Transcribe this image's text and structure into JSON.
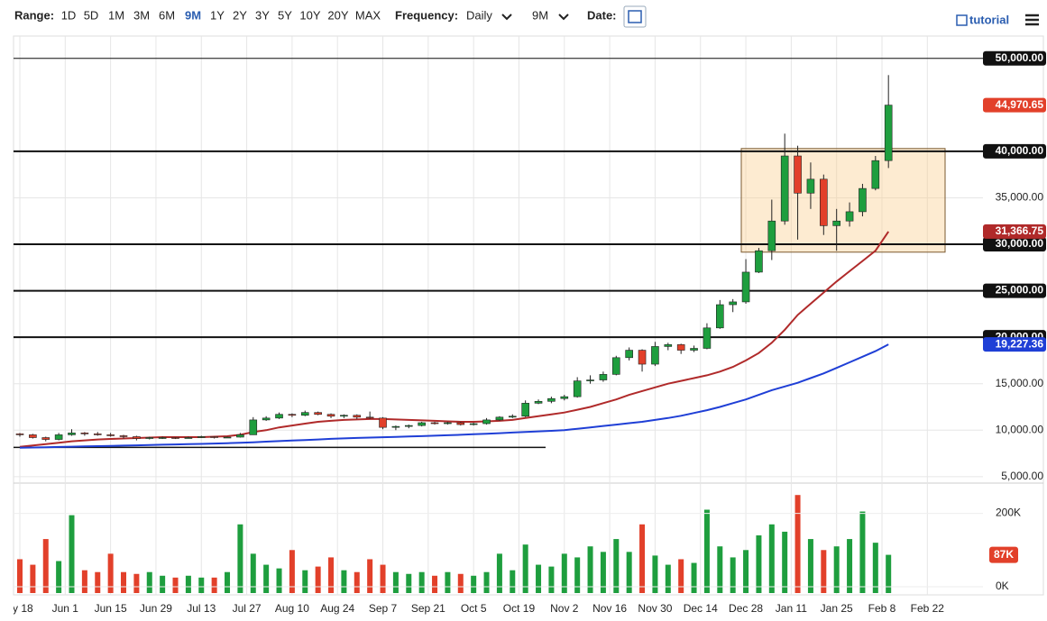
{
  "toolbar": {
    "range_label": "Range:",
    "ranges": [
      "1D",
      "5D",
      "1M",
      "3M",
      "6M",
      "9M",
      "1Y",
      "2Y",
      "3Y",
      "5Y",
      "10Y",
      "20Y",
      "MAX"
    ],
    "active_range": "9M",
    "frequency_label": "Frequency:",
    "frequency": "Daily",
    "period": "9M",
    "date_label": "Date:",
    "tutorial": "tutorial"
  },
  "chart_data": {
    "type": "candlestick",
    "x_labels": [
      "ay 18",
      "Jun 1",
      "Jun 15",
      "Jun 29",
      "Jul 13",
      "Jul 27",
      "Aug 10",
      "Aug 24",
      "Sep 7",
      "Sep 21",
      "Oct 5",
      "Oct 19",
      "Nov 2",
      "Nov 16",
      "Nov 30",
      "Dec 14",
      "Dec 28",
      "Jan 11",
      "Jan 25",
      "Feb 8",
      "Feb 22"
    ],
    "ylim": [
      4400,
      52400
    ],
    "yticks": [
      {
        "value": 5000,
        "label": "5,000.00"
      },
      {
        "value": 10000,
        "label": "10,000.00"
      },
      {
        "value": 15000,
        "label": "15,000.00"
      },
      {
        "value": 20000,
        "label": "20,000.00"
      },
      {
        "value": 25000,
        "label": "25,000.00"
      },
      {
        "value": 30000,
        "label": "30,000.00"
      },
      {
        "value": 35000,
        "label": "35,000.00"
      },
      {
        "value": 40000,
        "label": "40,000.00"
      },
      {
        "value": 50000,
        "label": "50,000.00"
      }
    ],
    "hlines": [
      50000,
      40000,
      30000,
      25000,
      20000
    ],
    "support_line": 8150,
    "zone": [
      29150,
      40300
    ],
    "up_color": "#1e9e3e",
    "down_color": "#e2402a",
    "ohlc": [
      [
        9600,
        9700,
        9300,
        9500
      ],
      [
        9500,
        9600,
        9100,
        9200
      ],
      [
        9200,
        9300,
        8800,
        9000
      ],
      [
        9000,
        9700,
        8900,
        9500
      ],
      [
        9500,
        10100,
        9400,
        9700
      ],
      [
        9700,
        9800,
        9400,
        9600
      ],
      [
        9600,
        9800,
        9400,
        9500
      ],
      [
        9500,
        9700,
        9300,
        9400
      ],
      [
        9400,
        9500,
        9100,
        9300
      ],
      [
        9300,
        9400,
        8900,
        9100
      ],
      [
        9100,
        9300,
        9000,
        9200
      ],
      [
        9200,
        9300,
        9050,
        9200
      ],
      [
        9200,
        9250,
        9050,
        9150
      ],
      [
        9150,
        9300,
        9100,
        9200
      ],
      [
        9200,
        9400,
        9150,
        9300
      ],
      [
        9300,
        9350,
        9100,
        9200
      ],
      [
        9200,
        9300,
        9150,
        9250
      ],
      [
        9250,
        9700,
        9200,
        9500
      ],
      [
        9500,
        11400,
        9500,
        11100
      ],
      [
        11100,
        11500,
        11000,
        11300
      ],
      [
        11300,
        11900,
        11200,
        11700
      ],
      [
        11700,
        11800,
        11400,
        11600
      ],
      [
        11600,
        12100,
        11500,
        11900
      ],
      [
        11900,
        12000,
        11600,
        11700
      ],
      [
        11700,
        11800,
        11300,
        11500
      ],
      [
        11500,
        11700,
        11300,
        11600
      ],
      [
        11600,
        11700,
        11200,
        11400
      ],
      [
        11400,
        12000,
        11200,
        11300
      ],
      [
        11300,
        11400,
        10100,
        10300
      ],
      [
        10300,
        10500,
        10000,
        10400
      ],
      [
        10400,
        10600,
        10200,
        10500
      ],
      [
        10500,
        10900,
        10400,
        10800
      ],
      [
        10800,
        10900,
        10600,
        10700
      ],
      [
        10700,
        10900,
        10600,
        10800
      ],
      [
        10800,
        10900,
        10500,
        10600
      ],
      [
        10600,
        10800,
        10500,
        10700
      ],
      [
        10700,
        11300,
        10600,
        11100
      ],
      [
        11100,
        11500,
        11000,
        11400
      ],
      [
        11400,
        11700,
        11300,
        11500
      ],
      [
        11500,
        13200,
        11400,
        12900
      ],
      [
        12900,
        13300,
        12800,
        13100
      ],
      [
        13100,
        13600,
        12900,
        13400
      ],
      [
        13400,
        13800,
        13200,
        13600
      ],
      [
        13600,
        15700,
        13500,
        15300
      ],
      [
        15300,
        15900,
        15000,
        15400
      ],
      [
        15400,
        16300,
        15200,
        16000
      ],
      [
        16000,
        18000,
        15900,
        17800
      ],
      [
        17800,
        18900,
        17500,
        18600
      ],
      [
        18600,
        18700,
        16300,
        17100
      ],
      [
        17100,
        19500,
        16900,
        19000
      ],
      [
        19000,
        19400,
        18600,
        19200
      ],
      [
        19200,
        19300,
        18200,
        18600
      ],
      [
        18600,
        19100,
        18400,
        18800
      ],
      [
        18800,
        21500,
        18700,
        21000
      ],
      [
        21000,
        24000,
        20900,
        23500
      ],
      [
        23500,
        24100,
        22700,
        23800
      ],
      [
        23800,
        28400,
        23600,
        27000
      ],
      [
        27000,
        29600,
        26900,
        29300
      ],
      [
        29300,
        34800,
        28300,
        32500
      ],
      [
        32500,
        41900,
        32100,
        39500
      ],
      [
        39500,
        40600,
        30500,
        35500
      ],
      [
        35500,
        38800,
        33800,
        37000
      ],
      [
        37000,
        37500,
        31000,
        32000
      ],
      [
        32000,
        33800,
        29300,
        32500
      ],
      [
        32500,
        34500,
        31900,
        33500
      ],
      [
        33500,
        36500,
        33000,
        36000
      ],
      [
        36000,
        39500,
        35800,
        39000
      ],
      [
        39000,
        48200,
        38200,
        44970.65
      ]
    ],
    "last_label": "44,970.65",
    "ma_series": [
      {
        "color": "#b02a2a",
        "last_label": "31,366.75",
        "values": [
          8200,
          8350,
          8500,
          8650,
          8800,
          8900,
          9000,
          9050,
          9100,
          9150,
          9200,
          9250,
          9250,
          9250,
          9250,
          9300,
          9350,
          9500,
          9800,
          10000,
          10300,
          10500,
          10700,
          10900,
          11000,
          11100,
          11150,
          11200,
          11200,
          11150,
          11100,
          11050,
          11000,
          10950,
          10900,
          10900,
          10950,
          11000,
          11100,
          11300,
          11500,
          11700,
          11900,
          12200,
          12500,
          12900,
          13300,
          13800,
          14200,
          14600,
          15000,
          15300,
          15600,
          15900,
          16300,
          16800,
          17500,
          18300,
          19400,
          20800,
          22400,
          23600,
          24800,
          26000,
          27100,
          28200,
          29300,
          31366.75
        ]
      },
      {
        "color": "#1f3fd6",
        "last_label": "19,227.36",
        "values": [
          8100,
          8130,
          8160,
          8190,
          8220,
          8250,
          8280,
          8310,
          8340,
          8370,
          8400,
          8430,
          8460,
          8490,
          8520,
          8560,
          8600,
          8650,
          8700,
          8760,
          8820,
          8880,
          8940,
          9000,
          9060,
          9110,
          9160,
          9200,
          9240,
          9280,
          9320,
          9360,
          9400,
          9450,
          9500,
          9560,
          9620,
          9680,
          9740,
          9800,
          9870,
          9930,
          10000,
          10150,
          10300,
          10450,
          10600,
          10750,
          10900,
          11100,
          11300,
          11550,
          11850,
          12150,
          12500,
          12900,
          13300,
          13800,
          14300,
          14700,
          15100,
          15600,
          16100,
          16700,
          17300,
          17900,
          18500,
          19227.36
        ]
      }
    ],
    "volume": {
      "ylim": [
        0,
        280000
      ],
      "yticks": [
        {
          "value": 0,
          "label": "0K"
        },
        {
          "value": 200000,
          "label": "200K"
        }
      ],
      "last_label": "87K",
      "values": [
        75000,
        60000,
        130000,
        70000,
        195000,
        45000,
        40000,
        90000,
        40000,
        35000,
        40000,
        30000,
        25000,
        30000,
        25000,
        25000,
        40000,
        170000,
        90000,
        60000,
        50000,
        100000,
        45000,
        55000,
        80000,
        45000,
        40000,
        75000,
        60000,
        40000,
        35000,
        40000,
        30000,
        40000,
        35000,
        30000,
        40000,
        90000,
        45000,
        115000,
        60000,
        55000,
        90000,
        80000,
        110000,
        95000,
        130000,
        95000,
        170000,
        85000,
        60000,
        75000,
        65000,
        210000,
        110000,
        80000,
        100000,
        140000,
        170000,
        150000,
        250000,
        130000,
        100000,
        110000,
        130000,
        205000,
        120000,
        87000
      ]
    }
  }
}
